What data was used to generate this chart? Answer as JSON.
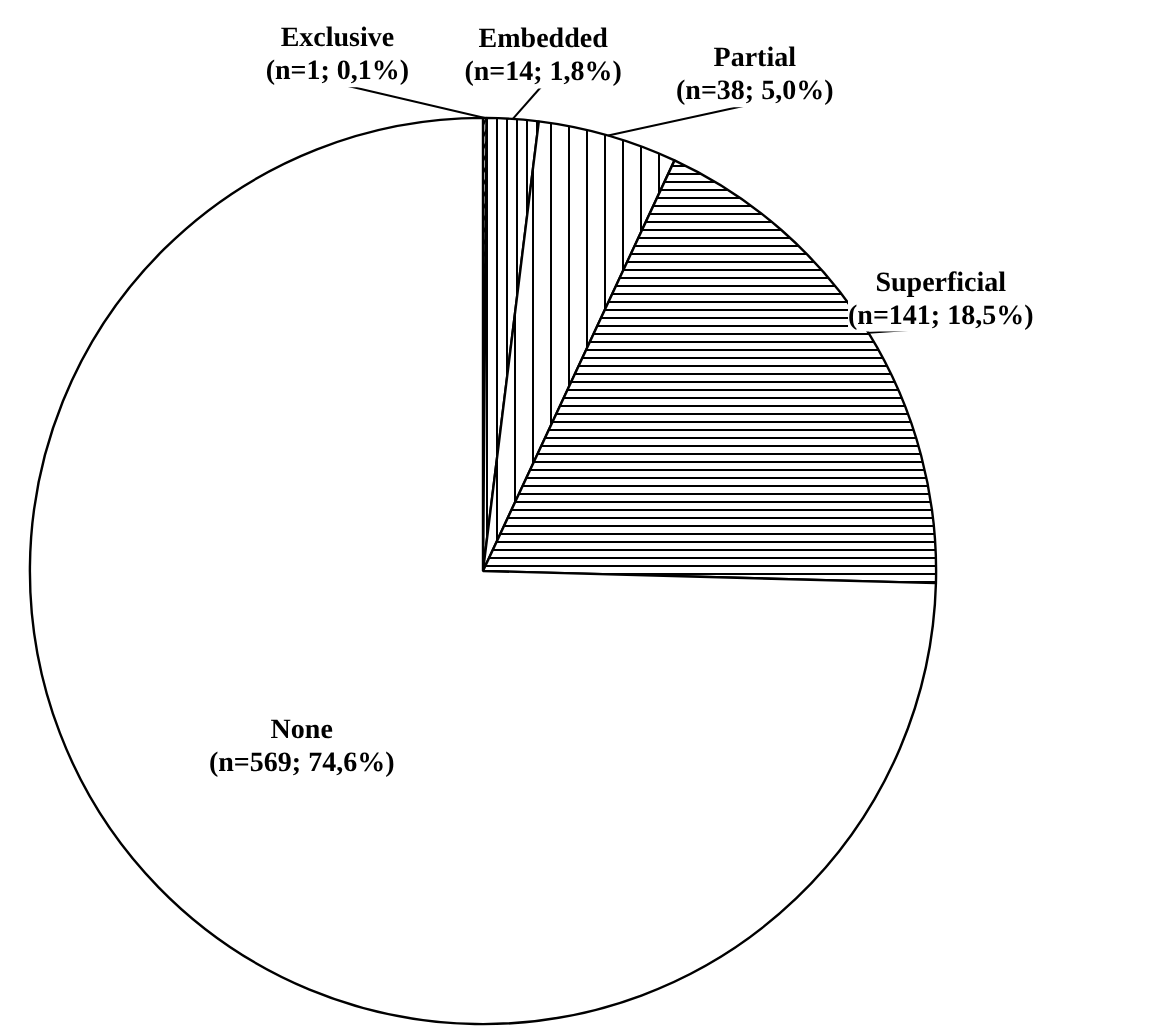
{
  "chart_data": {
    "type": "pie",
    "categories": [
      "Exclusive",
      "Embedded",
      "Partial",
      "Superficial",
      "None"
    ],
    "values": [
      1,
      14,
      38,
      141,
      569
    ],
    "value_labels": [
      "(n=1; 0,1%)",
      "(n=14; 1,8%)",
      "(n=38; 5,0%)",
      "(n=141; 18,5%)",
      "(n=569; 74,6%)"
    ],
    "colors": [
      "#ffffff",
      "#ffffff",
      "#ffffff",
      "#ffffff",
      "#ffffff"
    ]
  }
}
